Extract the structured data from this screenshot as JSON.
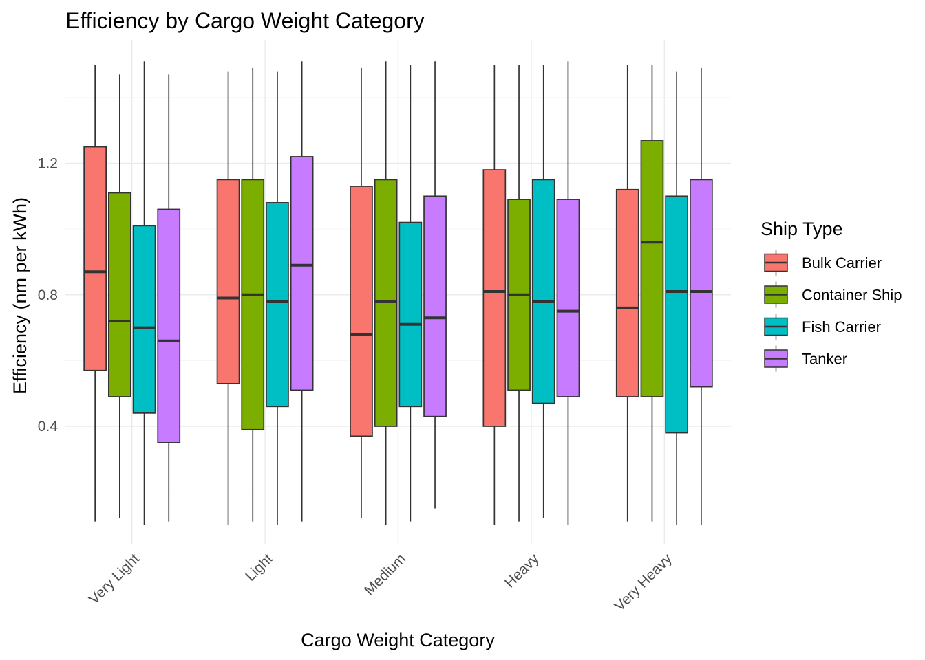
{
  "chart_data": {
    "type": "boxplot",
    "title": "Efficiency by Cargo Weight Category",
    "xlabel": "Cargo Weight Category",
    "ylabel": "Efficiency (nm per kWh)",
    "ylim": [
      0.03,
      1.55
    ],
    "yticks": [
      0.4,
      0.8,
      1.2
    ],
    "grid": true,
    "legend": {
      "title": "Ship Type",
      "position": "right"
    },
    "categories": [
      "Very Light",
      "Light",
      "Medium",
      "Heavy",
      "Very Heavy"
    ],
    "series": [
      {
        "name": "Bulk Carrier",
        "color": "#F8766D",
        "boxes": [
          {
            "min": 0.11,
            "q1": 0.57,
            "median": 0.87,
            "q3": 1.25,
            "max": 1.5
          },
          {
            "min": 0.1,
            "q1": 0.53,
            "median": 0.79,
            "q3": 1.15,
            "max": 1.48
          },
          {
            "min": 0.12,
            "q1": 0.37,
            "median": 0.68,
            "q3": 1.13,
            "max": 1.49
          },
          {
            "min": 0.1,
            "q1": 0.4,
            "median": 0.81,
            "q3": 1.18,
            "max": 1.5
          },
          {
            "min": 0.11,
            "q1": 0.49,
            "median": 0.76,
            "q3": 1.12,
            "max": 1.5
          }
        ]
      },
      {
        "name": "Container Ship",
        "color": "#7CAE00",
        "boxes": [
          {
            "min": 0.12,
            "q1": 0.49,
            "median": 0.72,
            "q3": 1.11,
            "max": 1.47
          },
          {
            "min": 0.11,
            "q1": 0.39,
            "median": 0.8,
            "q3": 1.15,
            "max": 1.49
          },
          {
            "min": 0.1,
            "q1": 0.4,
            "median": 0.78,
            "q3": 1.15,
            "max": 1.51
          },
          {
            "min": 0.11,
            "q1": 0.51,
            "median": 0.8,
            "q3": 1.09,
            "max": 1.5
          },
          {
            "min": 0.11,
            "q1": 0.49,
            "median": 0.96,
            "q3": 1.27,
            "max": 1.5
          }
        ]
      },
      {
        "name": "Fish Carrier",
        "color": "#00BFC4",
        "boxes": [
          {
            "min": 0.1,
            "q1": 0.44,
            "median": 0.7,
            "q3": 1.01,
            "max": 1.51
          },
          {
            "min": 0.1,
            "q1": 0.46,
            "median": 0.78,
            "q3": 1.08,
            "max": 1.48
          },
          {
            "min": 0.11,
            "q1": 0.46,
            "median": 0.71,
            "q3": 1.02,
            "max": 1.5
          },
          {
            "min": 0.12,
            "q1": 0.47,
            "median": 0.78,
            "q3": 1.15,
            "max": 1.5
          },
          {
            "min": 0.1,
            "q1": 0.38,
            "median": 0.81,
            "q3": 1.1,
            "max": 1.48
          }
        ]
      },
      {
        "name": "Tanker",
        "color": "#C77CFF",
        "boxes": [
          {
            "min": 0.11,
            "q1": 0.35,
            "median": 0.66,
            "q3": 1.06,
            "max": 1.47
          },
          {
            "min": 0.11,
            "q1": 0.51,
            "median": 0.89,
            "q3": 1.22,
            "max": 1.51
          },
          {
            "min": 0.15,
            "q1": 0.43,
            "median": 0.73,
            "q3": 1.1,
            "max": 1.51
          },
          {
            "min": 0.1,
            "q1": 0.49,
            "median": 0.75,
            "q3": 1.09,
            "max": 1.51
          },
          {
            "min": 0.1,
            "q1": 0.52,
            "median": 0.81,
            "q3": 1.15,
            "max": 1.49
          }
        ]
      }
    ]
  }
}
